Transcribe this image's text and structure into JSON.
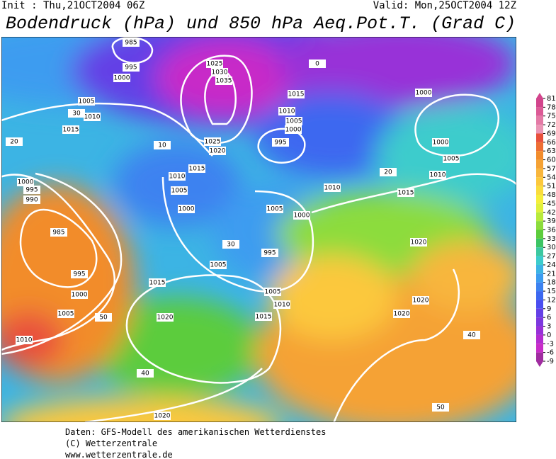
{
  "header": {
    "init": "Init : Thu,21OCT2004 06Z",
    "valid": "Valid: Mon,25OCT2004 12Z",
    "title": "Bodendruck (hPa) und 850 hPa Aeq.Pot.T. (Grad C)"
  },
  "legend": {
    "ticks": [
      81,
      78,
      75,
      72,
      69,
      66,
      63,
      60,
      57,
      54,
      51,
      48,
      45,
      42,
      39,
      36,
      33,
      30,
      27,
      24,
      21,
      18,
      15,
      12,
      9,
      6,
      3,
      0,
      -3,
      -6,
      -9
    ],
    "colors": [
      "#d2448c",
      "#dc5a96",
      "#e47aa6",
      "#ea96b6",
      "#e8503c",
      "#ee6e34",
      "#f28c2c",
      "#f5a234",
      "#f8b63c",
      "#fcc83c",
      "#fadc3c",
      "#f6ee3a",
      "#e0f03c",
      "#b8ea3c",
      "#8cdc3c",
      "#5ccc3c",
      "#3cc464",
      "#3cc8a0",
      "#3ccccc",
      "#3cb4e4",
      "#3c9cf0",
      "#3c82f0",
      "#3c68f0",
      "#4a4ef0",
      "#6440e6",
      "#7c38de",
      "#9830d8",
      "#b42cd0",
      "#c82cc8",
      "#a02ca0"
    ]
  },
  "map": {
    "isobar_labels": [
      985,
      995,
      1000,
      1005,
      1010,
      1015,
      1025,
      1030,
      1035,
      1015,
      1010,
      1005,
      1000,
      995,
      1025,
      1020,
      1015,
      1010,
      1005,
      1000,
      1005,
      1000,
      1010,
      1015,
      1000,
      1000,
      1005,
      1010,
      1020,
      1020,
      1020,
      995,
      1005,
      1005,
      1010,
      1015,
      1015,
      1020,
      1020,
      985,
      995,
      1000,
      1005,
      1010,
      1000,
      995,
      990
    ],
    "temperature_labels": [
      50,
      40,
      30,
      20,
      10,
      0,
      50,
      40,
      30,
      20
    ]
  },
  "footer": [
    "Daten: GFS-Modell des amerikanischen Wetterdienstes",
    "(C) Wetterzentrale",
    "www.wetterzentrale.de"
  ]
}
